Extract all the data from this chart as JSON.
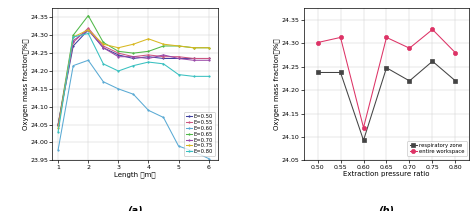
{
  "fig_width": 4.74,
  "fig_height": 2.11,
  "dpi": 100,
  "chart_a": {
    "xlabel": "Length （m）",
    "ylabel": "Oxygen mass fraction（%）",
    "label_a": "(a)",
    "xlim": [
      0.8,
      6.3
    ],
    "ylim": [
      23.95,
      24.375
    ],
    "yticks": [
      23.95,
      24.0,
      24.05,
      24.1,
      24.15,
      24.2,
      24.25,
      24.3,
      24.35
    ],
    "xticks": [
      1,
      2,
      3,
      4,
      5,
      6
    ],
    "series": [
      {
        "label": "E=0.50",
        "color": "#4040a0",
        "x": [
          1.0,
          1.5,
          2.0,
          2.5,
          3.0,
          3.5,
          4.0,
          4.5,
          5.0,
          5.5,
          6.0
        ],
        "y": [
          24.05,
          24.27,
          24.315,
          24.265,
          24.245,
          24.235,
          24.24,
          24.235,
          24.235,
          24.235,
          24.235
        ]
      },
      {
        "label": "E=0.55",
        "color": "#cc5580",
        "x": [
          1.0,
          1.5,
          2.0,
          2.5,
          3.0,
          3.5,
          4.0,
          4.5,
          5.0,
          5.5,
          6.0
        ],
        "y": [
          24.05,
          24.28,
          24.32,
          24.27,
          24.25,
          24.24,
          24.245,
          24.24,
          24.24,
          24.235,
          24.235
        ]
      },
      {
        "label": "E=0.60",
        "color": "#5aaad4",
        "x": [
          1.0,
          1.5,
          2.0,
          2.5,
          3.0,
          3.5,
          4.0,
          4.5,
          5.0,
          5.5,
          6.0
        ],
        "y": [
          23.98,
          24.215,
          24.23,
          24.17,
          24.15,
          24.135,
          24.09,
          24.07,
          23.99,
          23.975,
          23.955
        ]
      },
      {
        "label": "E=0.65",
        "color": "#50b848",
        "x": [
          1.0,
          1.5,
          2.0,
          2.5,
          3.0,
          3.5,
          4.0,
          4.5,
          5.0,
          5.5,
          6.0
        ],
        "y": [
          24.05,
          24.3,
          24.355,
          24.28,
          24.255,
          24.25,
          24.255,
          24.27,
          24.27,
          24.265,
          24.265
        ]
      },
      {
        "label": "E=0.70",
        "color": "#9848a8",
        "x": [
          1.0,
          1.5,
          2.0,
          2.5,
          3.0,
          3.5,
          4.0,
          4.5,
          5.0,
          5.5,
          6.0
        ],
        "y": [
          24.05,
          24.285,
          24.315,
          24.265,
          24.24,
          24.24,
          24.235,
          24.245,
          24.235,
          24.23,
          24.23
        ]
      },
      {
        "label": "E=0.75",
        "color": "#d8b820",
        "x": [
          1.0,
          1.5,
          2.0,
          2.5,
          3.0,
          3.5,
          4.0,
          4.5,
          5.0,
          5.5,
          6.0
        ],
        "y": [
          24.04,
          24.295,
          24.315,
          24.275,
          24.265,
          24.275,
          24.29,
          24.275,
          24.27,
          24.265,
          24.265
        ]
      },
      {
        "label": "E=0.80",
        "color": "#38c0c0",
        "x": [
          1.0,
          1.5,
          2.0,
          2.5,
          3.0,
          3.5,
          4.0,
          4.5,
          5.0,
          5.5,
          6.0
        ],
        "y": [
          24.03,
          24.295,
          24.305,
          24.22,
          24.2,
          24.215,
          24.225,
          24.22,
          24.19,
          24.185,
          24.185
        ]
      }
    ]
  },
  "chart_b": {
    "xlabel": "Extraction pressure ratio",
    "ylabel": "Oxygen mass fraction（%）",
    "label_b": "(b)",
    "xlim": [
      0.47,
      0.83
    ],
    "ylim": [
      24.05,
      24.375
    ],
    "yticks": [
      24.05,
      24.1,
      24.15,
      24.2,
      24.25,
      24.3,
      24.35
    ],
    "xticks": [
      0.5,
      0.55,
      0.6,
      0.65,
      0.7,
      0.75,
      0.8
    ],
    "series": [
      {
        "label": "respiratory zone",
        "color": "#444444",
        "marker": "s",
        "x": [
          0.5,
          0.55,
          0.6,
          0.65,
          0.7,
          0.75,
          0.8
        ],
        "y": [
          24.238,
          24.238,
          24.093,
          24.248,
          24.22,
          24.262,
          24.22
        ]
      },
      {
        "label": "entire workspace",
        "color": "#dd3366",
        "marker": "o",
        "x": [
          0.5,
          0.55,
          0.6,
          0.65,
          0.7,
          0.75,
          0.8
        ],
        "y": [
          24.302,
          24.313,
          24.12,
          24.313,
          24.29,
          24.33,
          24.28
        ]
      }
    ]
  }
}
